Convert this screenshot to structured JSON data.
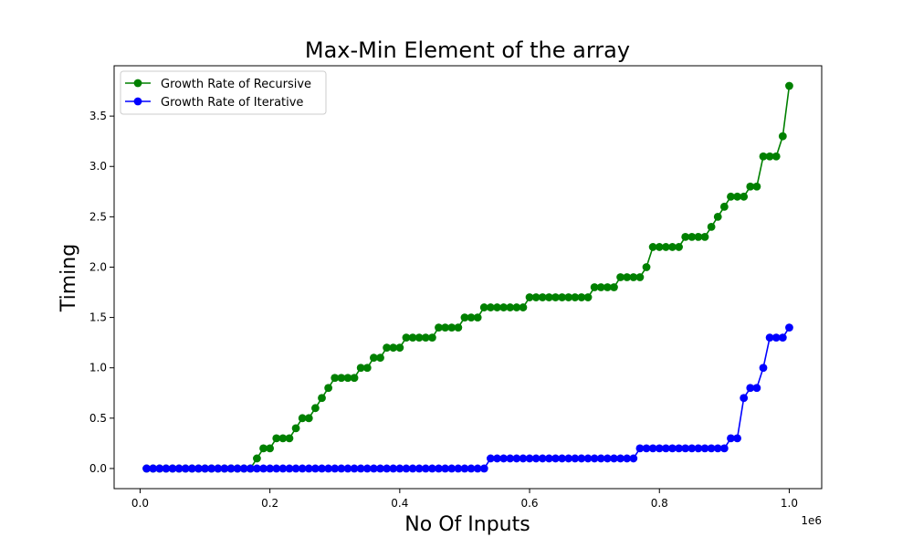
{
  "chart_data": {
    "type": "line",
    "title": "Max-Min Element of the array",
    "xlabel": "No Of Inputs",
    "ylabel": "Timing",
    "x_offset_label": "1e6",
    "xlim": [
      -40000,
      1050000
    ],
    "ylim": [
      -0.2,
      4.0
    ],
    "x_ticks": [
      0,
      200000,
      400000,
      600000,
      800000,
      1000000
    ],
    "x_tick_labels": [
      "0.0",
      "0.2",
      "0.4",
      "0.6",
      "0.8",
      "1.0"
    ],
    "y_ticks": [
      0.0,
      0.5,
      1.0,
      1.5,
      2.0,
      2.5,
      3.0,
      3.5
    ],
    "y_tick_labels": [
      "0.0",
      "0.5",
      "1.0",
      "1.5",
      "2.0",
      "2.5",
      "3.0",
      "3.5"
    ],
    "legend_position": "top-left",
    "x": [
      10000,
      20000,
      30000,
      40000,
      50000,
      60000,
      70000,
      80000,
      90000,
      100000,
      110000,
      120000,
      130000,
      140000,
      150000,
      160000,
      170000,
      180000,
      190000,
      200000,
      210000,
      220000,
      230000,
      240000,
      250000,
      260000,
      270000,
      280000,
      290000,
      300000,
      310000,
      320000,
      330000,
      340000,
      350000,
      360000,
      370000,
      380000,
      390000,
      400000,
      410000,
      420000,
      430000,
      440000,
      450000,
      460000,
      470000,
      480000,
      490000,
      500000,
      510000,
      520000,
      530000,
      540000,
      550000,
      560000,
      570000,
      580000,
      590000,
      600000,
      610000,
      620000,
      630000,
      640000,
      650000,
      660000,
      670000,
      680000,
      690000,
      700000,
      710000,
      720000,
      730000,
      740000,
      750000,
      760000,
      770000,
      780000,
      790000,
      800000,
      810000,
      820000,
      830000,
      840000,
      850000,
      860000,
      870000,
      880000,
      890000,
      900000,
      910000,
      920000,
      930000,
      940000,
      950000,
      960000,
      970000,
      980000,
      990000,
      1000000
    ],
    "series": [
      {
        "name": "Growth Rate of Recursive",
        "color": "#008000",
        "values": [
          0,
          0,
          0,
          0,
          0,
          0,
          0,
          0,
          0,
          0,
          0,
          0,
          0,
          0,
          0,
          0,
          0,
          0.1,
          0.2,
          0.2,
          0.3,
          0.3,
          0.3,
          0.4,
          0.5,
          0.5,
          0.6,
          0.7,
          0.8,
          0.9,
          0.9,
          0.9,
          0.9,
          1.0,
          1.0,
          1.1,
          1.1,
          1.2,
          1.2,
          1.2,
          1.3,
          1.3,
          1.3,
          1.3,
          1.3,
          1.4,
          1.4,
          1.4,
          1.4,
          1.5,
          1.5,
          1.5,
          1.6,
          1.6,
          1.6,
          1.6,
          1.6,
          1.6,
          1.6,
          1.7,
          1.7,
          1.7,
          1.7,
          1.7,
          1.7,
          1.7,
          1.7,
          1.7,
          1.7,
          1.8,
          1.8,
          1.8,
          1.8,
          1.9,
          1.9,
          1.9,
          1.9,
          2.0,
          2.2,
          2.2,
          2.2,
          2.2,
          2.2,
          2.3,
          2.3,
          2.3,
          2.3,
          2.4,
          2.5,
          2.6,
          2.7,
          2.7,
          2.7,
          2.8,
          2.8,
          3.1,
          3.1,
          3.1,
          3.3,
          3.8
        ]
      },
      {
        "name": "Growth Rate of Iterative",
        "color": "#0000ff",
        "values": [
          0,
          0,
          0,
          0,
          0,
          0,
          0,
          0,
          0,
          0,
          0,
          0,
          0,
          0,
          0,
          0,
          0,
          0,
          0,
          0,
          0,
          0,
          0,
          0,
          0,
          0,
          0,
          0,
          0,
          0,
          0,
          0,
          0,
          0,
          0,
          0,
          0,
          0,
          0,
          0,
          0,
          0,
          0,
          0,
          0,
          0,
          0,
          0,
          0,
          0,
          0,
          0,
          0,
          0.1,
          0.1,
          0.1,
          0.1,
          0.1,
          0.1,
          0.1,
          0.1,
          0.1,
          0.1,
          0.1,
          0.1,
          0.1,
          0.1,
          0.1,
          0.1,
          0.1,
          0.1,
          0.1,
          0.1,
          0.1,
          0.1,
          0.1,
          0.2,
          0.2,
          0.2,
          0.2,
          0.2,
          0.2,
          0.2,
          0.2,
          0.2,
          0.2,
          0.2,
          0.2,
          0.2,
          0.2,
          0.3,
          0.3,
          0.7,
          0.8,
          0.8,
          1.0,
          1.3,
          1.3,
          1.3,
          1.4
        ]
      }
    ]
  }
}
